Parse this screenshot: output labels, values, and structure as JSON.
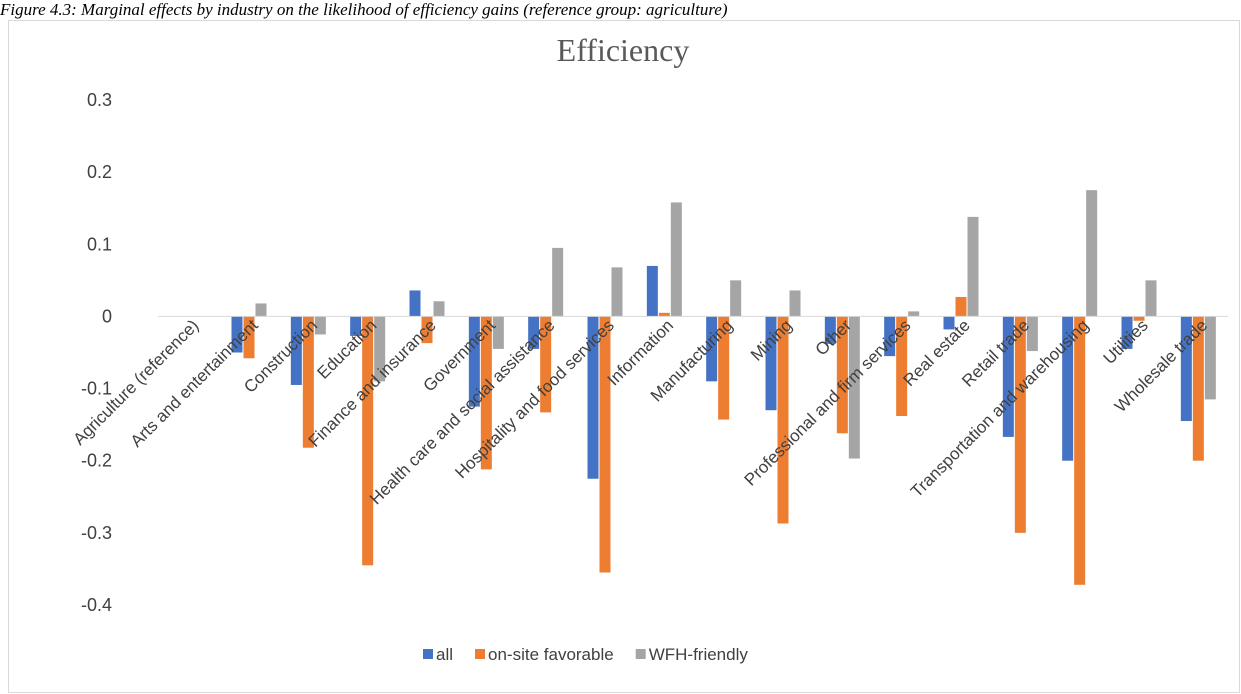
{
  "caption": "Figure 4.3: Marginal effects by industry on the likelihood of efficiency gains (reference group: agriculture)",
  "chart_data": {
    "type": "bar",
    "title": "Efficiency",
    "xlabel": "",
    "ylabel": "",
    "ylim": [
      -0.4,
      0.3
    ],
    "yticks": [
      0.3,
      0.2,
      0.1,
      0,
      -0.1,
      -0.2,
      -0.3,
      -0.4
    ],
    "grid": false,
    "legend_position": "bottom",
    "categories": [
      "Agriculture (reference)",
      "Arts and entertainment",
      "Construction",
      "Education",
      "Finance and insurance",
      "Government",
      "Health care and social assistance",
      "Hospitality and food services",
      "Information",
      "Manufacturing",
      "Mining",
      "Other",
      "Professional and firm services",
      "Real estate",
      "Retail trade",
      "Transportation and warehousing",
      "Utilities",
      "Wholesale trade"
    ],
    "series": [
      {
        "name": "all",
        "color": "#4472C4",
        "values": [
          0,
          -0.05,
          -0.095,
          -0.027,
          0.036,
          -0.125,
          -0.045,
          -0.225,
          0.07,
          -0.09,
          -0.13,
          -0.038,
          -0.055,
          -0.018,
          -0.167,
          -0.2,
          -0.045,
          -0.145
        ]
      },
      {
        "name": "on-site favorable",
        "color": "#ED7D31",
        "values": [
          0,
          -0.058,
          -0.182,
          -0.345,
          -0.037,
          -0.212,
          -0.133,
          -0.355,
          0.005,
          -0.143,
          -0.287,
          -0.162,
          -0.138,
          0.027,
          -0.3,
          -0.372,
          -0.006,
          -0.2
        ]
      },
      {
        "name": "WFH-friendly",
        "color": "#A5A5A5",
        "values": [
          0,
          0.018,
          -0.025,
          -0.09,
          0.021,
          -0.045,
          0.095,
          0.068,
          0.158,
          0.05,
          0.036,
          -0.197,
          0.007,
          0.138,
          -0.048,
          0.175,
          0.05,
          -0.115
        ]
      }
    ]
  }
}
